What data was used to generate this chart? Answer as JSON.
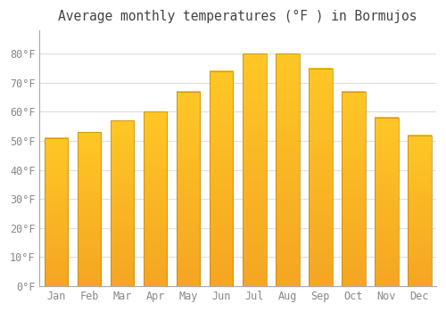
{
  "title": "Average monthly temperatures (°F ) in Bormujos",
  "months": [
    "Jan",
    "Feb",
    "Mar",
    "Apr",
    "May",
    "Jun",
    "Jul",
    "Aug",
    "Sep",
    "Oct",
    "Nov",
    "Dec"
  ],
  "values": [
    51,
    53,
    57,
    60,
    67,
    74,
    80,
    80,
    75,
    67,
    58,
    52
  ],
  "bar_color_bottom": "#F5A623",
  "bar_color_top": "#FFC726",
  "bar_edge_color": "#B8860B",
  "background_color": "#FFFFFF",
  "grid_color": "#DDDDDD",
  "text_color": "#888888",
  "title_color": "#444444",
  "ylim": [
    0,
    88
  ],
  "yticks": [
    0,
    10,
    20,
    30,
    40,
    50,
    60,
    70,
    80
  ],
  "title_fontsize": 10.5,
  "tick_fontsize": 8.5,
  "bar_width": 0.72
}
